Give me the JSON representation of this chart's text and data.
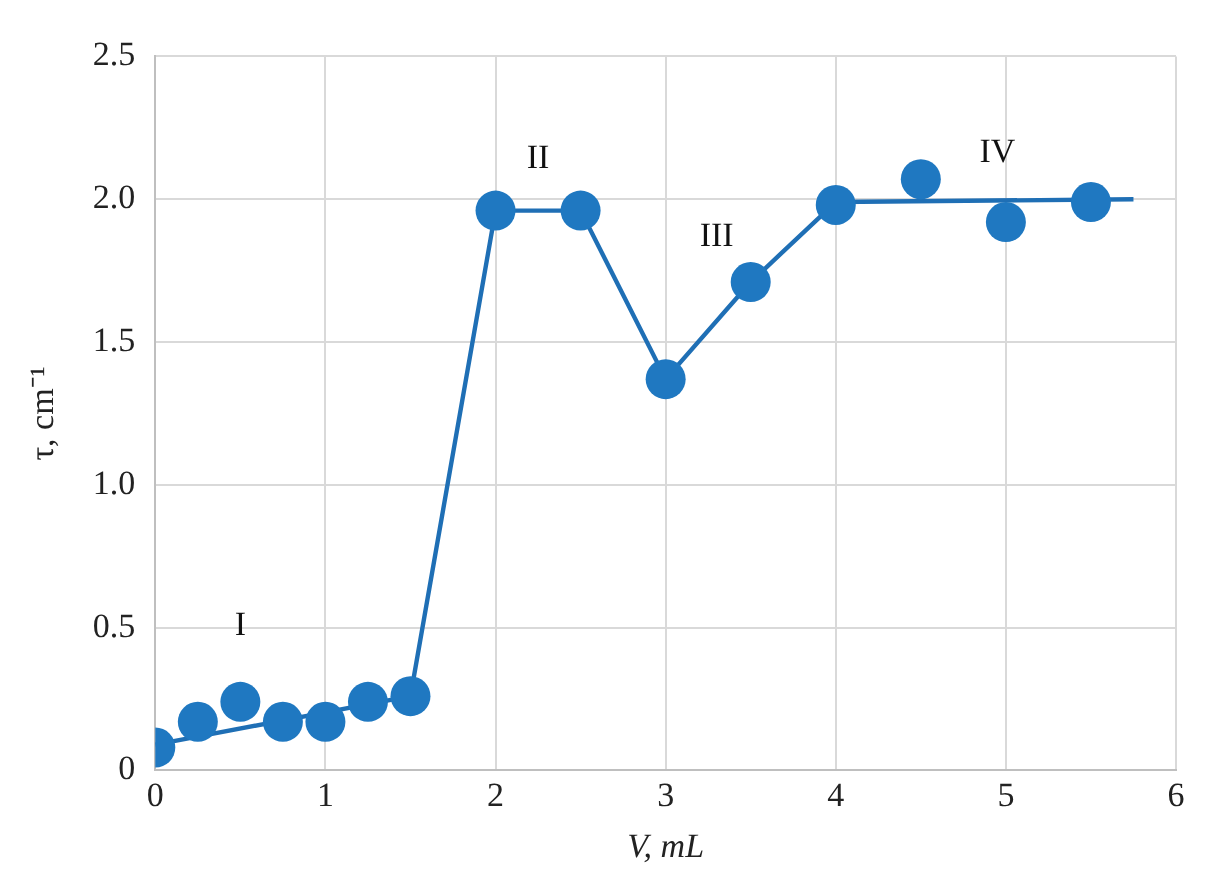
{
  "chart_data": {
    "type": "scatter",
    "xlabel": "V, mL",
    "ylabel": "τ, cm⁻¹",
    "xlim": [
      0,
      6
    ],
    "xticks": [
      0,
      1,
      2,
      3,
      4,
      5,
      6
    ],
    "ylim": [
      0,
      2.5
    ],
    "yticks": [
      0,
      {
        "value": 0.5,
        "label": "0.5"
      },
      {
        "value": 1,
        "label": "1.0"
      },
      {
        "value": 1.5,
        "label": "1.5"
      },
      {
        "value": 2,
        "label": "2.0"
      },
      {
        "value": 2.5,
        "label": "2.5"
      }
    ],
    "grid": true,
    "marker": "circle",
    "series": [
      {
        "type": "line",
        "color": "#1f6fb5",
        "marker": "none",
        "x": [
          0,
          1.5,
          2,
          2.5,
          3,
          3.5,
          4,
          5.75
        ],
        "values": [
          0.09,
          0.26,
          1.96,
          1.96,
          1.37,
          1.71,
          1.99,
          2.0
        ]
      },
      {
        "type": "scatter",
        "color": "#1f78c1",
        "x": [
          0,
          0.25,
          0.5,
          0.75,
          1,
          1.25,
          1.5,
          2,
          2.5,
          3,
          3.5,
          4,
          4.5,
          5,
          5.5
        ],
        "values": [
          0.08,
          0.17,
          0.24,
          0.17,
          0.17,
          0.24,
          0.26,
          1.96,
          1.96,
          1.37,
          1.71,
          1.98,
          2.07,
          1.92,
          1.99
        ]
      }
    ],
    "annotations": [
      {
        "text": "I",
        "x": 0.5,
        "y": 0.24
      },
      {
        "text": "II",
        "x": 2.25,
        "y": 1.96
      },
      {
        "text": "III",
        "x": 3.3,
        "y": 1.574
      },
      {
        "text": "IV",
        "x": 4.95,
        "y": 1.995
      }
    ]
  }
}
